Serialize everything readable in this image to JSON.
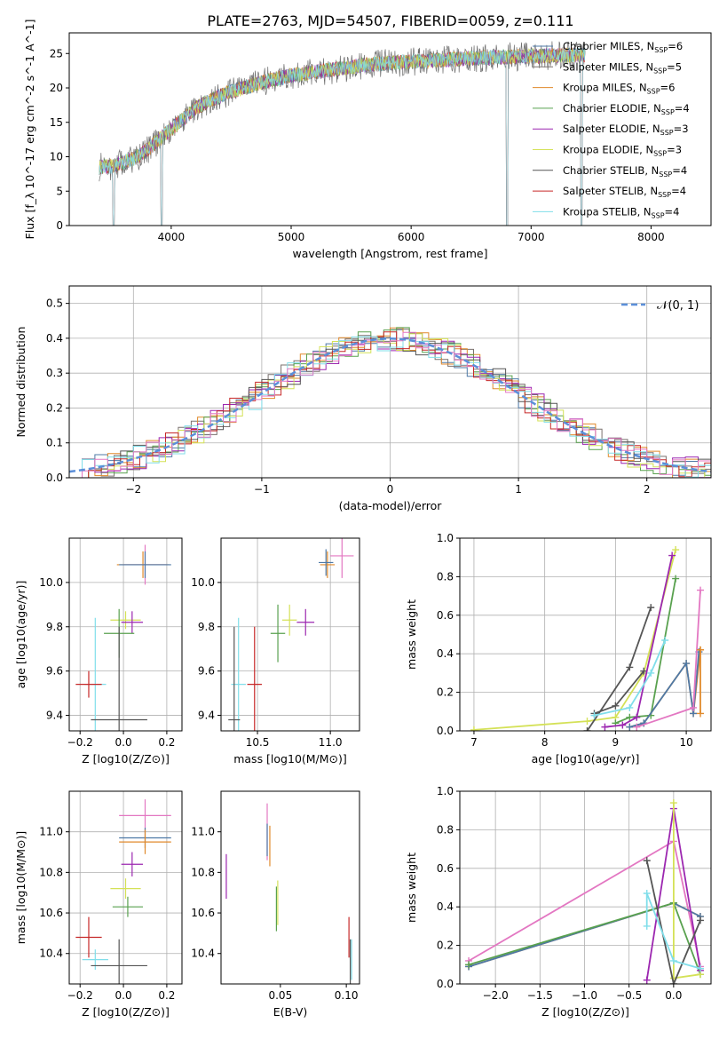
{
  "figure_title": "PLATE=2763, MJD=54507, FIBERID=0059, z=0.111",
  "models": [
    {
      "name": "Chabrier MILES, N_SSP=6",
      "label_main": "Chabrier MILES, N",
      "label_tail": "=6",
      "color": "#4e79a7"
    },
    {
      "name": "Salpeter MILES, N_SSP=5",
      "label_main": "Salpeter MILES, N",
      "label_tail": "=5",
      "color": "#79706e"
    },
    {
      "name": "Kroupa MILES, N_SSP=6",
      "label_main": "Kroupa MILES, N",
      "label_tail": "=6",
      "color": "#e08a2c"
    },
    {
      "name": "Chabrier ELODIE, N_SSP=4",
      "label_main": "Chabrier ELODIE, N",
      "label_tail": "=4",
      "color": "#59a14f"
    },
    {
      "name": "Salpeter ELODIE, N_SSP=3",
      "label_main": "Salpeter ELODIE, N",
      "label_tail": "=3",
      "color": "#9c27b0"
    },
    {
      "name": "Kroupa ELODIE, N_SSP=3",
      "label_main": "Kroupa ELODIE, N",
      "label_tail": "=3",
      "color": "#d4e157"
    },
    {
      "name": "Chabrier STELIB, N_SSP=4",
      "label_main": "Chabrier STELIB, N",
      "label_tail": "=4",
      "color": "#555555"
    },
    {
      "name": "Salpeter STELIB, N_SSP=4",
      "label_main": "Salpeter STELIB, N",
      "label_tail": "=4",
      "color": "#c62828"
    },
    {
      "name": "Kroupa STELIB, N_SSP=4",
      "label_main": "Kroupa STELIB, N",
      "label_tail": "=4",
      "color": "#80deea"
    }
  ],
  "extra_colors": {
    "pink": "#e377c2",
    "dashed": "#5b8fd9"
  },
  "chart_data": [
    {
      "id": "spectrum",
      "type": "line",
      "xlabel": "wavelength [Angstrom, rest frame]",
      "ylabel": "Flux [f_λ 10^-17 erg cm^-2 s^-1 A^-1]",
      "xlim": [
        3150,
        8500
      ],
      "ylim": [
        0,
        28
      ],
      "xticks": [
        4000,
        5000,
        6000,
        7000,
        8000
      ],
      "yticks": [
        0,
        5,
        10,
        15,
        20,
        25
      ],
      "grid": false,
      "legend": "right",
      "continuum": {
        "x": [
          3400,
          3500,
          3600,
          3700,
          3800,
          3900,
          4000,
          4100,
          4200,
          4300,
          4400,
          4500,
          4600,
          4800,
          5000,
          5200,
          5400,
          5600,
          5800,
          6000,
          6200,
          6400,
          6600,
          6800,
          7000,
          7200,
          7400
        ],
        "y": [
          8.5,
          8.6,
          9.2,
          9.8,
          11.0,
          12.5,
          14.0,
          15.5,
          17.0,
          18.0,
          18.8,
          19.5,
          20.0,
          21.0,
          21.8,
          22.3,
          22.8,
          23.3,
          23.6,
          23.8,
          24.0,
          24.2,
          24.4,
          24.5,
          24.6,
          24.7,
          24.8
        ]
      },
      "dips": [
        {
          "x": 3520,
          "y": 0
        },
        {
          "x": 3920,
          "y": 0
        },
        {
          "x": 6800,
          "y": 0
        },
        {
          "x": 7420,
          "y": 0
        }
      ]
    },
    {
      "id": "residuals",
      "type": "step",
      "xlabel": "(data-model)/error",
      "ylabel": "Normed distribution",
      "xlim": [
        -2.5,
        2.5
      ],
      "ylim": [
        0,
        0.55
      ],
      "xticks": [
        -2,
        -1,
        0,
        1,
        2
      ],
      "yticks": [
        0.0,
        0.1,
        0.2,
        0.3,
        0.4,
        0.5
      ],
      "grid": true,
      "legend": "top-right",
      "reference": {
        "name": "N(0,1)",
        "label": "𝒩(0, 1)",
        "mean": 0,
        "std": 1
      }
    },
    {
      "id": "age_vs_Z",
      "type": "scatter",
      "xlabel": "Z [log10(Z/Z⊙)]",
      "ylabel": "age [log10(age/yr)]",
      "xlim": [
        -0.25,
        0.27
      ],
      "ylim": [
        9.33,
        10.2
      ],
      "xticks": [
        -0.2,
        0.0,
        0.2
      ],
      "yticks": [
        9.4,
        9.6,
        9.8,
        10.0
      ],
      "grid": true,
      "points": [
        {
          "x": 0.1,
          "y": 10.08,
          "ex": 0.1,
          "ey": 0.09,
          "c": "#e377c2"
        },
        {
          "x": 0.09,
          "y": 10.08,
          "ex": 0.12,
          "ey": 0.06,
          "c": "#e08a2c"
        },
        {
          "x": 0.1,
          "y": 10.08,
          "ex": 0.12,
          "ey": 0.06,
          "c": "#4e79a7"
        },
        {
          "x": 0.01,
          "y": 9.83,
          "ex": 0.07,
          "ey": 0.04,
          "c": "#d4e157"
        },
        {
          "x": 0.04,
          "y": 9.82,
          "ex": 0.05,
          "ey": 0.05,
          "c": "#9c27b0"
        },
        {
          "x": -0.02,
          "y": 9.77,
          "ex": 0.07,
          "ey": 0.11,
          "c": "#59a14f"
        },
        {
          "x": -0.13,
          "y": 9.54,
          "ex": 0.05,
          "ey": 0.3,
          "c": "#80deea"
        },
        {
          "x": -0.16,
          "y": 9.54,
          "ex": 0.06,
          "ey": 0.06,
          "c": "#c62828"
        },
        {
          "x": -0.02,
          "y": 9.38,
          "ex": 0.13,
          "ey": 0.42,
          "c": "#555555"
        }
      ]
    },
    {
      "id": "age_vs_mass",
      "type": "scatter",
      "xlabel": "mass [log10(M/M⊙)]",
      "ylabel": "",
      "xlim": [
        10.25,
        11.2
      ],
      "ylim": [
        9.33,
        10.2
      ],
      "xticks": [
        10.5,
        11.0
      ],
      "yticks": [
        9.4,
        9.6,
        9.8,
        10.0
      ],
      "grid": true,
      "points": [
        {
          "x": 11.08,
          "y": 10.12,
          "ex": 0.08,
          "ey": 0.1,
          "c": "#e377c2"
        },
        {
          "x": 10.98,
          "y": 10.08,
          "ex": 0.05,
          "ey": 0.06,
          "c": "#e08a2c"
        },
        {
          "x": 10.97,
          "y": 10.09,
          "ex": 0.05,
          "ey": 0.06,
          "c": "#4e79a7"
        },
        {
          "x": 10.72,
          "y": 9.83,
          "ex": 0.05,
          "ey": 0.07,
          "c": "#d4e157"
        },
        {
          "x": 10.83,
          "y": 9.82,
          "ex": 0.06,
          "ey": 0.06,
          "c": "#9c27b0"
        },
        {
          "x": 10.64,
          "y": 9.77,
          "ex": 0.05,
          "ey": 0.13,
          "c": "#59a14f"
        },
        {
          "x": 10.37,
          "y": 9.54,
          "ex": 0.05,
          "ey": 0.3,
          "c": "#80deea"
        },
        {
          "x": 10.48,
          "y": 9.54,
          "ex": 0.05,
          "ey": 0.26,
          "c": "#c62828"
        },
        {
          "x": 10.34,
          "y": 9.38,
          "ex": 0.04,
          "ey": 0.42,
          "c": "#555555"
        }
      ]
    },
    {
      "id": "weight_vs_age",
      "type": "line",
      "xlabel": "age [log10(age/yr)]",
      "ylabel": "mass weight",
      "xlim": [
        6.8,
        10.35
      ],
      "ylim": [
        0,
        1.0
      ],
      "xticks": [
        7,
        8,
        9,
        10
      ],
      "yticks": [
        0.0,
        0.2,
        0.4,
        0.6,
        0.8,
        1.0
      ],
      "grid": true,
      "series": [
        {
          "c": "#d4e157",
          "x": [
            7.0,
            8.6,
            9.0,
            9.4,
            9.85
          ],
          "y": [
            0.005,
            0.05,
            0.07,
            0.3,
            0.94
          ]
        },
        {
          "c": "#555555",
          "x": [
            8.6,
            9.2,
            9.5
          ],
          "y": [
            0.0,
            0.33,
            0.64
          ]
        },
        {
          "c": "#555555",
          "x": [
            8.7,
            9.0,
            9.4
          ],
          "y": [
            0.09,
            0.13,
            0.31
          ]
        },
        {
          "c": "#59a14f",
          "x": [
            9.0,
            9.2,
            9.5,
            9.85
          ],
          "y": [
            0.04,
            0.07,
            0.08,
            0.79
          ]
        },
        {
          "c": "#9c27b0",
          "x": [
            8.85,
            9.1,
            9.3,
            9.8
          ],
          "y": [
            0.02,
            0.03,
            0.07,
            0.91
          ]
        },
        {
          "c": "#80deea",
          "x": [
            8.7,
            9.2,
            9.5,
            9.7
          ],
          "y": [
            0.08,
            0.12,
            0.3,
            0.47
          ]
        },
        {
          "c": "#e08a2c",
          "x": [
            9.2,
            9.4,
            10.0,
            10.1,
            10.2
          ],
          "y": [
            0.02,
            0.04,
            0.35,
            0.09,
            0.42
          ]
        },
        {
          "c": "#4e79a7",
          "x": [
            9.2,
            9.4,
            10.0,
            10.1,
            10.18
          ],
          "y": [
            0.02,
            0.04,
            0.35,
            0.09,
            0.41
          ]
        },
        {
          "c": "#e377c2",
          "x": [
            9.3,
            10.1,
            10.2
          ],
          "y": [
            0.02,
            0.12,
            0.73
          ]
        },
        {
          "c": "#e08a2c",
          "x": [
            10.2,
            10.2
          ],
          "y": [
            0.09,
            0.42
          ]
        }
      ]
    },
    {
      "id": "mass_vs_Z",
      "type": "scatter",
      "xlabel": "Z [log10(Z/Z⊙)]",
      "ylabel": "mass [log10(M/M⊙)]",
      "xlim": [
        -0.25,
        0.27
      ],
      "ylim": [
        10.25,
        11.2
      ],
      "xticks": [
        -0.2,
        0.0,
        0.2
      ],
      "yticks": [
        10.4,
        10.6,
        10.8,
        11.0
      ],
      "grid": true,
      "points": [
        {
          "x": 0.1,
          "y": 11.08,
          "ex": 0.12,
          "ey": 0.08,
          "c": "#e377c2"
        },
        {
          "x": 0.1,
          "y": 10.97,
          "ex": 0.12,
          "ey": 0.05,
          "c": "#4e79a7"
        },
        {
          "x": 0.1,
          "y": 10.95,
          "ex": 0.12,
          "ey": 0.06,
          "c": "#e08a2c"
        },
        {
          "x": 0.04,
          "y": 10.84,
          "ex": 0.05,
          "ey": 0.06,
          "c": "#9c27b0"
        },
        {
          "x": 0.01,
          "y": 10.72,
          "ex": 0.07,
          "ey": 0.05,
          "c": "#d4e157"
        },
        {
          "x": 0.02,
          "y": 10.63,
          "ex": 0.07,
          "ey": 0.05,
          "c": "#59a14f"
        },
        {
          "x": -0.16,
          "y": 10.48,
          "ex": 0.06,
          "ey": 0.1,
          "c": "#c62828"
        },
        {
          "x": -0.13,
          "y": 10.37,
          "ex": 0.06,
          "ey": 0.05,
          "c": "#80deea"
        },
        {
          "x": -0.02,
          "y": 10.34,
          "ex": 0.13,
          "ey": 0.13,
          "c": "#555555"
        }
      ]
    },
    {
      "id": "mass_vs_ebv",
      "type": "scatter",
      "xlabel": "E(B-V)",
      "ylabel": "",
      "xlim": [
        0.005,
        0.11
      ],
      "ylim": [
        10.25,
        11.2
      ],
      "xticks": [
        0.05,
        0.1
      ],
      "yticks": [
        10.4,
        10.6,
        10.8,
        11.0
      ],
      "grid": false,
      "points": [
        {
          "x": 0.04,
          "y": 11.0,
          "ex": 0,
          "ey": 0.14,
          "c": "#e377c2"
        },
        {
          "x": 0.04,
          "y": 10.96,
          "ex": 0,
          "ey": 0.08,
          "c": "#4e79a7"
        },
        {
          "x": 0.042,
          "y": 10.93,
          "ex": 0,
          "ey": 0.1,
          "c": "#e08a2c"
        },
        {
          "x": 0.009,
          "y": 10.78,
          "ex": 0,
          "ey": 0.11,
          "c": "#9c27b0"
        },
        {
          "x": 0.048,
          "y": 10.65,
          "ex": 0,
          "ey": 0.11,
          "c": "#d4e157"
        },
        {
          "x": 0.047,
          "y": 10.62,
          "ex": 0,
          "ey": 0.11,
          "c": "#59a14f"
        },
        {
          "x": 0.102,
          "y": 10.48,
          "ex": 0,
          "ey": 0.1,
          "c": "#c62828"
        },
        {
          "x": 0.104,
          "y": 10.37,
          "ex": 0,
          "ey": 0.1,
          "c": "#80deea"
        },
        {
          "x": 0.103,
          "y": 10.34,
          "ex": 0,
          "ey": 0.13,
          "c": "#555555"
        }
      ]
    },
    {
      "id": "weight_vs_Z",
      "type": "line",
      "xlabel": "Z [log10(Z/Z⊙)]",
      "ylabel": "mass weight",
      "xlim": [
        -2.4,
        0.42
      ],
      "ylim": [
        0,
        1.0
      ],
      "xticks": [
        -2.0,
        -1.5,
        -1.0,
        -0.5,
        0.0
      ],
      "yticks": [
        0.0,
        0.2,
        0.4,
        0.6,
        0.8,
        1.0
      ],
      "grid": true,
      "series": [
        {
          "c": "#e377c2",
          "x": [
            -2.3,
            0.0,
            0.3
          ],
          "y": [
            0.12,
            0.74,
            0.09
          ]
        },
        {
          "c": "#e08a2c",
          "x": [
            -2.3,
            0.0,
            0.3
          ],
          "y": [
            0.09,
            0.42,
            0.35
          ]
        },
        {
          "c": "#4e79a7",
          "x": [
            -2.3,
            0.0,
            0.3
          ],
          "y": [
            0.09,
            0.42,
            0.35
          ]
        },
        {
          "c": "#59a14f",
          "x": [
            -2.3,
            0.0,
            0.3
          ],
          "y": [
            0.1,
            0.42,
            0.05
          ]
        },
        {
          "c": "#9c27b0",
          "x": [
            -0.3,
            0.0,
            0.3
          ],
          "y": [
            0.02,
            0.91,
            0.07
          ]
        },
        {
          "c": "#d4e157",
          "x": [
            0.0,
            0.0,
            0.3
          ],
          "y": [
            0.94,
            0.03,
            0.05
          ]
        },
        {
          "c": "#555555",
          "x": [
            -0.3,
            0.0,
            0.3
          ],
          "y": [
            0.64,
            0.0,
            0.33
          ]
        },
        {
          "c": "#80deea",
          "x": [
            -0.3,
            -0.3,
            0.0,
            0.3
          ],
          "y": [
            0.3,
            0.47,
            0.12,
            0.08
          ]
        }
      ]
    }
  ]
}
